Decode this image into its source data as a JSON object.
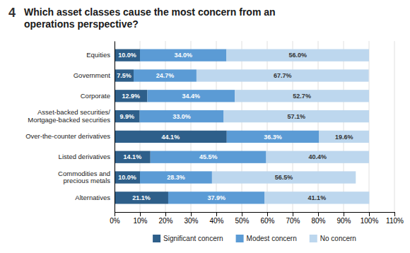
{
  "chart_data": {
    "type": "bar",
    "orientation": "horizontal",
    "stacked": true,
    "title": "Which asset classes cause the most concern from an\noperations perspective?",
    "annotations": [
      "4"
    ],
    "categories": [
      "Equities",
      "Government",
      "Corporate",
      "Asset-backed securities/\nMortgage-backed securities",
      "Over-the-counter derivatives",
      "Listed derivatives",
      "Commodities and\nprecious metals",
      "Alternatives"
    ],
    "series": [
      {
        "name": "Significant concern",
        "color": "#2E5F8A",
        "values": [
          10.0,
          7.5,
          12.9,
          9.9,
          44.1,
          14.1,
          10.0,
          21.1
        ],
        "value_labels": [
          "10.0%",
          "7.5%",
          "12.9%",
          "9.9%",
          "44.1%",
          "14.1%",
          "10.0%",
          "21.1%"
        ]
      },
      {
        "name": "Modest concern",
        "color": "#5B9BD5",
        "values": [
          34.0,
          24.7,
          34.4,
          33.0,
          36.3,
          45.5,
          28.3,
          37.9
        ],
        "value_labels": [
          "34.0%",
          "24.7%",
          "34.4%",
          "33.0%",
          "36.3%",
          "45.5%",
          "28.3%",
          "37.9%"
        ]
      },
      {
        "name": "No concern",
        "color": "#BDD7EE",
        "values": [
          56.0,
          67.7,
          52.7,
          57.1,
          19.6,
          40.4,
          56.5,
          41.1
        ],
        "value_labels": [
          "56.0%",
          "67.7%",
          "52.7%",
          "57.1%",
          "19.6%",
          "40.4%",
          "56.5%",
          "41.1%"
        ]
      }
    ],
    "xlim": [
      0,
      110
    ],
    "xticks": [
      {
        "value": 0,
        "label": "0%"
      },
      {
        "value": 10,
        "label": "10%"
      },
      {
        "value": 20,
        "label": "20%"
      },
      {
        "value": 30,
        "label": "30%"
      },
      {
        "value": 40,
        "label": "40%"
      },
      {
        "value": 50,
        "label": "50%"
      },
      {
        "value": 60,
        "label": "60%"
      },
      {
        "value": 70,
        "label": "70%"
      },
      {
        "value": 80,
        "label": "80%"
      },
      {
        "value": 90,
        "label": "90%"
      },
      {
        "value": 100,
        "label": "100%"
      },
      {
        "value": 110,
        "label": "110%"
      }
    ],
    "grid": true,
    "data_labels": true,
    "legend": "bottom"
  }
}
